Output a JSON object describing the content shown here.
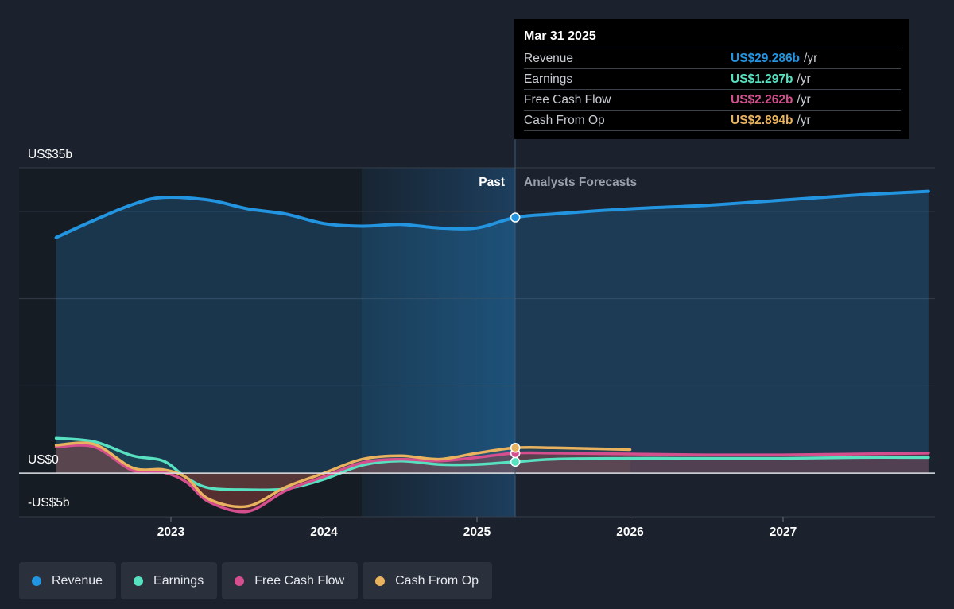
{
  "chart_data": {
    "type": "line",
    "y_axis": {
      "top_label": "US$35b",
      "zero_label": "US$0",
      "bottom_label": "-US$5b",
      "ylim": [
        -5,
        35
      ]
    },
    "x_axis": {
      "ticks": [
        "2023",
        "2024",
        "2025",
        "2026",
        "2027"
      ]
    },
    "period_labels": {
      "past": "Past",
      "forecast": "Analysts Forecasts"
    },
    "tooltip": {
      "date": "Mar 31 2025",
      "rows": [
        {
          "label": "Revenue",
          "value": "US$29.286b",
          "unit": "/yr",
          "color": "#2394df"
        },
        {
          "label": "Earnings",
          "value": "US$1.297b",
          "unit": "/yr",
          "color": "#58e1c1"
        },
        {
          "label": "Free Cash Flow",
          "value": "US$2.262b",
          "unit": "/yr",
          "color": "#d54e8d"
        },
        {
          "label": "Cash From Op",
          "value": "US$2.894b",
          "unit": "/yr",
          "color": "#e9b25f"
        }
      ]
    },
    "series": [
      {
        "name": "Revenue",
        "color": "#2394df",
        "x": [
          2022.25,
          2022.5,
          2022.75,
          2022.95,
          2023.25,
          2023.5,
          2023.75,
          2024.0,
          2024.25,
          2024.5,
          2024.75,
          2025.0,
          2025.25,
          2025.5,
          2026.0,
          2026.5,
          2027.0,
          2027.5,
          2027.95
        ],
        "y": [
          27.0,
          29.0,
          30.8,
          31.6,
          31.3,
          30.3,
          29.7,
          28.6,
          28.3,
          28.5,
          28.1,
          28.1,
          29.3,
          29.7,
          30.3,
          30.7,
          31.3,
          31.9,
          32.3
        ]
      },
      {
        "name": "Earnings",
        "color": "#58e1c1",
        "x": [
          2022.25,
          2022.5,
          2022.75,
          2022.95,
          2023.1,
          2023.25,
          2023.5,
          2023.75,
          2024.0,
          2024.25,
          2024.5,
          2024.75,
          2025.0,
          2025.25,
          2025.5,
          2026.0,
          2026.5,
          2027.0,
          2027.5,
          2027.95
        ],
        "y": [
          4.0,
          3.6,
          2.0,
          1.4,
          -0.5,
          -1.7,
          -1.9,
          -1.8,
          -0.7,
          0.9,
          1.4,
          1.0,
          1.0,
          1.3,
          1.6,
          1.7,
          1.7,
          1.7,
          1.8,
          1.8
        ]
      },
      {
        "name": "Free Cash Flow",
        "color": "#d54e8d",
        "x": [
          2022.25,
          2022.5,
          2022.75,
          2022.95,
          2023.1,
          2023.25,
          2023.5,
          2023.75,
          2024.0,
          2024.25,
          2024.5,
          2024.75,
          2025.0,
          2025.25,
          2025.5,
          2026.0,
          2026.5,
          2027.0,
          2027.5,
          2027.95
        ],
        "y": [
          3.0,
          3.0,
          0.3,
          0.1,
          -1.0,
          -3.3,
          -4.4,
          -2.0,
          -0.4,
          1.2,
          1.6,
          1.4,
          1.8,
          2.3,
          2.3,
          2.2,
          2.1,
          2.1,
          2.2,
          2.3
        ]
      },
      {
        "name": "Cash From Op",
        "color": "#e9b25f",
        "x": [
          2022.25,
          2022.5,
          2022.75,
          2022.95,
          2023.1,
          2023.25,
          2023.5,
          2023.75,
          2024.0,
          2024.25,
          2024.5,
          2024.75,
          2025.0,
          2025.25,
          2025.5,
          2026.0
        ],
        "y": [
          3.2,
          3.3,
          0.6,
          0.4,
          -0.5,
          -3.0,
          -3.8,
          -1.6,
          0.0,
          1.6,
          2.0,
          1.6,
          2.3,
          2.9,
          2.9,
          2.7
        ]
      }
    ],
    "highlight_x": 2025.25,
    "grid": true
  },
  "legend": [
    {
      "label": "Revenue",
      "color": "#2394df"
    },
    {
      "label": "Earnings",
      "color": "#58e1c1"
    },
    {
      "label": "Free Cash Flow",
      "color": "#d54e8d"
    },
    {
      "label": "Cash From Op",
      "color": "#e9b25f"
    }
  ]
}
